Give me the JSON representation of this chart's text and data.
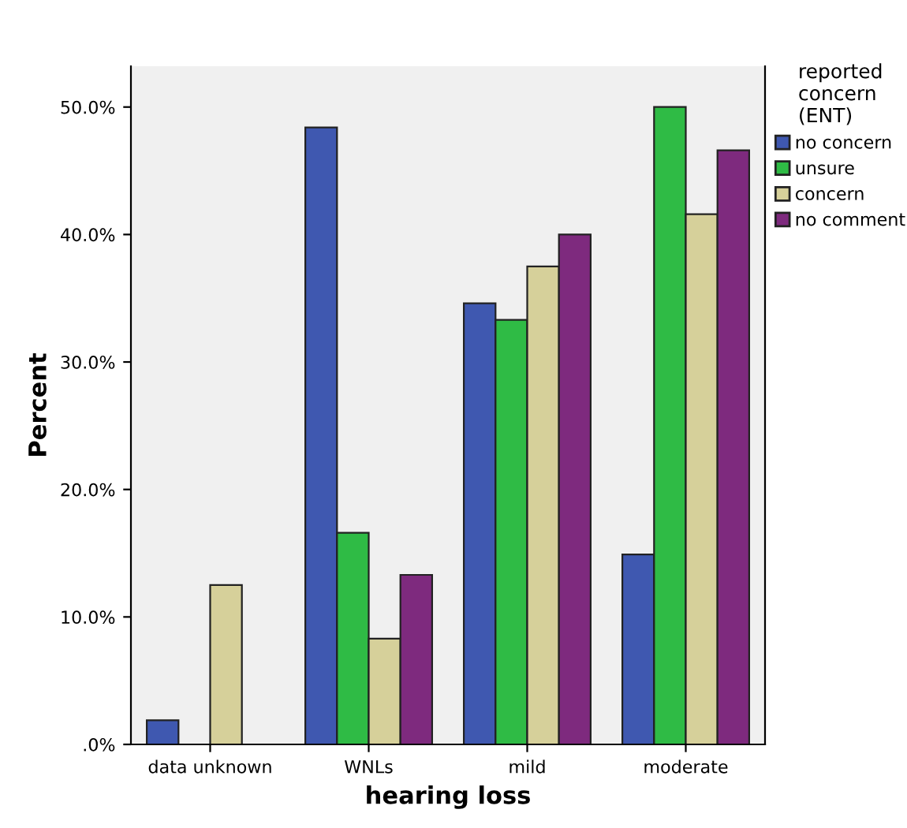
{
  "chart_data": {
    "type": "bar",
    "xlabel": "hearing loss",
    "ylabel": "Percent",
    "legend_title": "reported\nconcern\n(ENT)",
    "categories": [
      "data unknown",
      "WNLs",
      "mild",
      "moderate"
    ],
    "series": [
      {
        "name": "no concern",
        "color": "#3f58b0",
        "values": [
          1.9,
          48.4,
          34.6,
          14.9
        ]
      },
      {
        "name": "unsure",
        "color": "#2fbb45",
        "values": [
          null,
          16.6,
          33.3,
          50.0
        ]
      },
      {
        "name": "concern",
        "color": "#d6d09a",
        "values": [
          12.5,
          8.3,
          37.5,
          41.6
        ]
      },
      {
        "name": "no comment",
        "color": "#7e2a7e",
        "values": [
          null,
          13.3,
          40.0,
          46.6
        ]
      }
    ],
    "ylim": [
      0,
      53.2
    ],
    "yticks": [
      {
        "value": 0,
        "label": ".0%"
      },
      {
        "value": 10,
        "label": "10.0%"
      },
      {
        "value": 20,
        "label": "20.0%"
      },
      {
        "value": 30,
        "label": "30.0%"
      },
      {
        "value": 40,
        "label": "40.0%"
      },
      {
        "value": 50,
        "label": "50.0%"
      }
    ],
    "grid": false,
    "legend": "top right"
  }
}
